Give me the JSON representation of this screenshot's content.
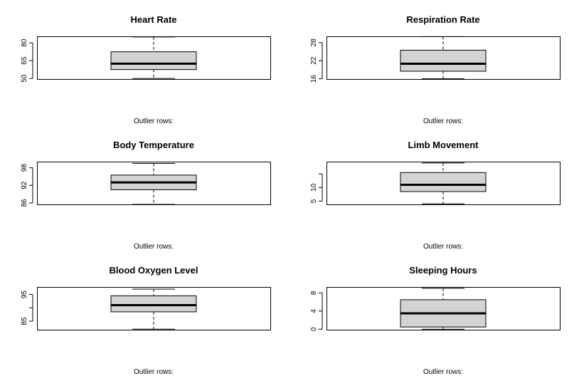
{
  "chart_data": [
    {
      "type": "boxplot",
      "title": "Heart Rate",
      "yticks": [
        50,
        65,
        80
      ],
      "ylim": [
        49.5,
        85.5
      ],
      "box": {
        "min": 50.0,
        "q1": 57.5,
        "median": 62.5,
        "q3": 72.5,
        "max": 85.0
      },
      "footnote": "Outlier rows:"
    },
    {
      "type": "boxplot",
      "title": "Respiration Rate",
      "yticks": [
        16,
        22,
        28
      ],
      "ylim": [
        15.9,
        30.1
      ],
      "box": {
        "min": 16.0,
        "q1": 18.5,
        "median": 21.0,
        "q3": 25.5,
        "max": 30.0
      },
      "footnote": "Outlier rows:"
    },
    {
      "type": "boxplot",
      "title": "Body Temperature",
      "yticks": [
        86,
        92,
        98
      ],
      "ylim": [
        85.5,
        100.1
      ],
      "box": {
        "min": 85.5,
        "q1": 90.5,
        "median": 93.0,
        "q3": 95.5,
        "max": 99.5
      },
      "footnote": "Outlier rows:"
    },
    {
      "type": "boxplot",
      "title": "Limb Movement",
      "yticks": [
        5,
        10
      ],
      "yticks_unlabeled": [
        15
      ],
      "ylim": [
        3.8,
        19.5
      ],
      "box": {
        "min": 4.0,
        "q1": 8.5,
        "median": 11.0,
        "q3": 15.5,
        "max": 19.0
      },
      "footnote": "Outlier rows:"
    },
    {
      "type": "boxplot",
      "title": "Blood Oxygen Level",
      "yticks": [
        85,
        95
      ],
      "yticks_unlabeled": [
        90
      ],
      "ylim": [
        81.8,
        97.8
      ],
      "box": {
        "min": 82.0,
        "q1": 88.5,
        "median": 91.0,
        "q3": 94.5,
        "max": 97.0
      },
      "footnote": "Outlier rows:"
    },
    {
      "type": "boxplot",
      "title": "Sleeping Hours",
      "yticks": [
        0,
        4,
        8
      ],
      "ylim": [
        -0.1,
        9.3
      ],
      "box": {
        "min": 0.0,
        "q1": 0.5,
        "median": 3.5,
        "q3": 6.5,
        "max": 9.0
      },
      "footnote": "Outlier rows:"
    }
  ],
  "colors": {
    "box_fill": "#d3d3d3",
    "stroke": "#000000",
    "background": "#ffffff"
  }
}
